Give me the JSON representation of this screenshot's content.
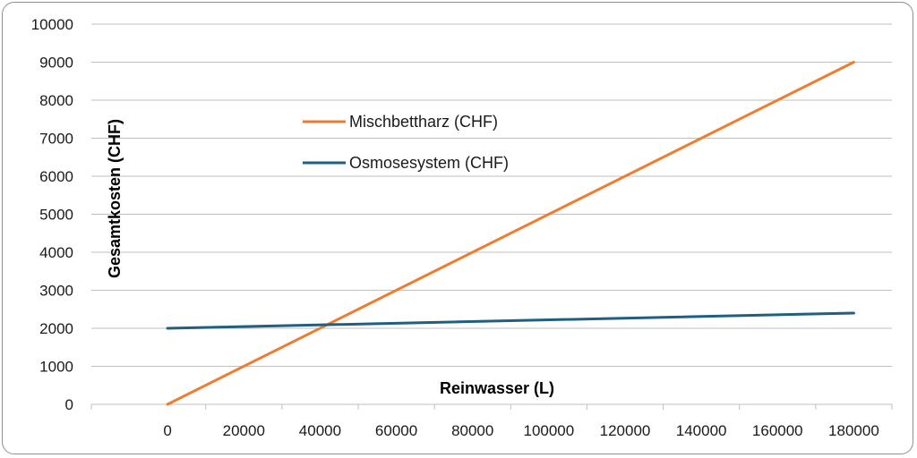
{
  "chart_data": {
    "type": "line",
    "title": "",
    "xlabel": "Reinwasser (L)",
    "ylabel": "Gesamtkosten (CHF)",
    "xlim": [
      -20000,
      190000
    ],
    "ylim": [
      0,
      10000
    ],
    "x_ticks": [
      0,
      20000,
      40000,
      60000,
      80000,
      100000,
      120000,
      140000,
      160000,
      180000
    ],
    "x_tick_labels": [
      "0",
      "20000",
      "40000",
      "60000",
      "80000",
      "100000",
      "120000",
      "140000",
      "160000",
      "180000"
    ],
    "y_ticks": [
      0,
      1000,
      2000,
      3000,
      4000,
      5000,
      6000,
      7000,
      8000,
      9000,
      10000
    ],
    "y_tick_labels": [
      "0",
      "1000",
      "2000",
      "3000",
      "4000",
      "5000",
      "6000",
      "7000",
      "8000",
      "9000",
      "10000"
    ],
    "grid": "horizontal",
    "legend_position": "top-center",
    "series": [
      {
        "name": "Mischbettharz (CHF)",
        "color": "#ed7d31",
        "x": [
          0,
          180000
        ],
        "y": [
          0,
          9000
        ]
      },
      {
        "name": "Osmosesystem (CHF)",
        "color": "#1f5f7f",
        "x": [
          0,
          180000
        ],
        "y": [
          2000,
          2400
        ]
      }
    ]
  }
}
